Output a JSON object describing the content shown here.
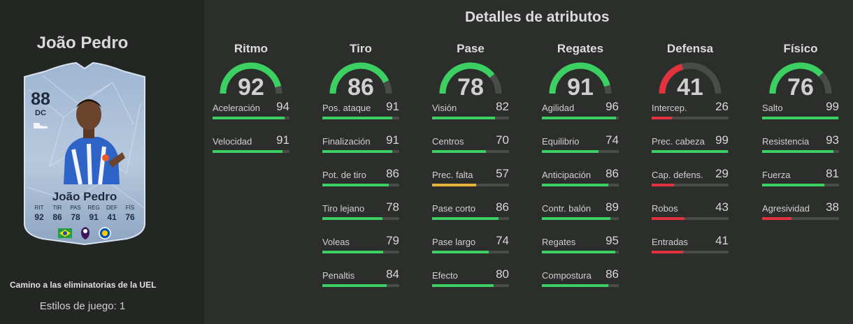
{
  "player": {
    "name": "João Pedro",
    "card": {
      "rating": "88",
      "position": "DC",
      "name": "João Pedro",
      "stats": [
        {
          "label": "RIT",
          "value": "92"
        },
        {
          "label": "TIR",
          "value": "86"
        },
        {
          "label": "PAS",
          "value": "78"
        },
        {
          "label": "REG",
          "value": "91"
        },
        {
          "label": "DEF",
          "value": "41"
        },
        {
          "label": "FÍS",
          "value": "76"
        }
      ]
    },
    "subtitle": "Camino a las eliminatorias de la UEL",
    "playstyles": "Estilos de juego: 1"
  },
  "attributes_title": "Detalles de atributos",
  "colors": {
    "green": "#3ccf62",
    "yellow": "#e6b23a",
    "red": "#e0333d",
    "track": "#4a4c4a"
  },
  "categories": [
    {
      "name": "Ritmo",
      "value": 92,
      "stats": [
        {
          "label": "Aceleración",
          "value": 94
        },
        {
          "label": "Velocidad",
          "value": 91
        }
      ]
    },
    {
      "name": "Tiro",
      "value": 86,
      "stats": [
        {
          "label": "Pos. ataque",
          "value": 91
        },
        {
          "label": "Finalización",
          "value": 91
        },
        {
          "label": "Pot. de tiro",
          "value": 86
        },
        {
          "label": "Tiro lejano",
          "value": 78
        },
        {
          "label": "Voleas",
          "value": 79
        },
        {
          "label": "Penaltis",
          "value": 84
        }
      ]
    },
    {
      "name": "Pase",
      "value": 78,
      "stats": [
        {
          "label": "Visión",
          "value": 82
        },
        {
          "label": "Centros",
          "value": 70
        },
        {
          "label": "Prec. falta",
          "value": 57
        },
        {
          "label": "Pase corto",
          "value": 86
        },
        {
          "label": "Pase largo",
          "value": 74
        },
        {
          "label": "Efecto",
          "value": 80
        }
      ]
    },
    {
      "name": "Regates",
      "value": 91,
      "stats": [
        {
          "label": "Agilidad",
          "value": 96
        },
        {
          "label": "Equilibrio",
          "value": 74
        },
        {
          "label": "Anticipación",
          "value": 86
        },
        {
          "label": "Contr. balón",
          "value": 89
        },
        {
          "label": "Regates",
          "value": 95
        },
        {
          "label": "Compostura",
          "value": 86
        }
      ]
    },
    {
      "name": "Defensa",
      "value": 41,
      "stats": [
        {
          "label": "Intercep.",
          "value": 26
        },
        {
          "label": "Prec. cabeza",
          "value": 99
        },
        {
          "label": "Cap. defens.",
          "value": 29
        },
        {
          "label": "Robos",
          "value": 43
        },
        {
          "label": "Entradas",
          "value": 41
        }
      ]
    },
    {
      "name": "Físico",
      "value": 76,
      "stats": [
        {
          "label": "Salto",
          "value": 99
        },
        {
          "label": "Resistencia",
          "value": 93
        },
        {
          "label": "Fuerza",
          "value": 81
        },
        {
          "label": "Agresividad",
          "value": 38
        }
      ]
    }
  ]
}
